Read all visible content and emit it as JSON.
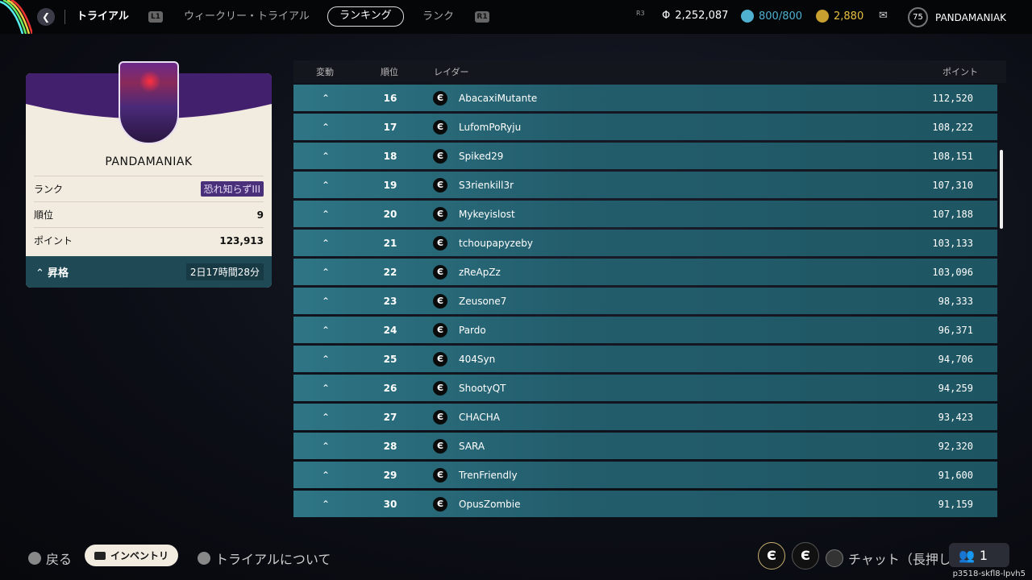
{
  "topbar": {
    "section": "トライアル",
    "tabs": [
      "ウィークリー・トライアル",
      "ランキング",
      "ランク"
    ],
    "active_tab": "ランキング",
    "l1": "L1",
    "r1": "R1",
    "r3": "R3",
    "currency": "2,252,087",
    "energy": "800/800",
    "gold": "2,880",
    "level": "75",
    "username": "PANDAMANIAK",
    "colors": {
      "energy": "#4fb0d0",
      "gold": "#e8c040"
    }
  },
  "player_card": {
    "name": "PANDAMANIAK",
    "rank_label": "ランク",
    "rank_value": "恐れ知らずIII",
    "position_label": "順位",
    "position_value": "9",
    "points_label": "ポイント",
    "points_value": "123,913",
    "promotion_label": "昇格",
    "promotion_timer": "2日17時間28分"
  },
  "table": {
    "headers": {
      "change": "変動",
      "position": "順位",
      "racer": "レイダー",
      "points": "ポイント"
    },
    "rows": [
      {
        "pos": "16",
        "name": "AbacaxiMutante",
        "points": "112,520"
      },
      {
        "pos": "17",
        "name": "LufomPoRyju",
        "points": "108,222"
      },
      {
        "pos": "18",
        "name": "Spiked29",
        "points": "108,151"
      },
      {
        "pos": "19",
        "name": "S3rienkill3r",
        "points": "107,310"
      },
      {
        "pos": "20",
        "name": "Mykeyislost",
        "points": "107,188"
      },
      {
        "pos": "21",
        "name": "tchoupapyzeby",
        "points": "103,133"
      },
      {
        "pos": "22",
        "name": "zReApZz",
        "points": "103,096"
      },
      {
        "pos": "23",
        "name": "Zeusone7",
        "points": "98,333"
      },
      {
        "pos": "24",
        "name": "Pardo",
        "points": "96,371"
      },
      {
        "pos": "25",
        "name": "404Syn",
        "points": "94,706"
      },
      {
        "pos": "26",
        "name": "ShootyQT",
        "points": "94,259"
      },
      {
        "pos": "27",
        "name": "CHACHA",
        "points": "93,423"
      },
      {
        "pos": "28",
        "name": "SARA",
        "points": "92,320"
      },
      {
        "pos": "29",
        "name": "TrenFriendly",
        "points": "91,600"
      },
      {
        "pos": "30",
        "name": "OpusZombie",
        "points": "91,159"
      }
    ]
  },
  "footer": {
    "back": "戻る",
    "inventory": "インベントリ",
    "about": "トライアルについて",
    "chat": "チャット（長押し）",
    "party_count": "1",
    "version": "p3518-skfl8-lpvh5"
  }
}
